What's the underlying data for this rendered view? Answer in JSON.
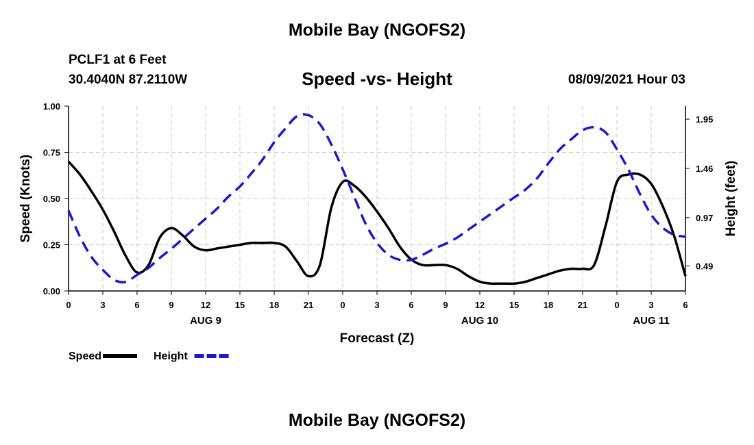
{
  "header": {
    "title": "Mobile Bay (NGOFS2)",
    "station": "PCLF1 at 6 Feet",
    "coords": "30.4040N  87.2110W",
    "subtitle": "Speed -vs- Height",
    "datetime": "08/09/2021 Hour 03"
  },
  "footer": {
    "title": "Mobile Bay (NGOFS2)"
  },
  "chart_data": {
    "type": "line",
    "title": "Speed -vs- Height",
    "xlabel": "Forecast (Z)",
    "ylabel": "Speed (Knots)",
    "y2label": "Height (feet)",
    "xlim": [
      0,
      54
    ],
    "ylim": [
      0,
      1.0
    ],
    "y2lim": [
      0.24,
      2.08
    ],
    "grid": true,
    "legend_position": "bottom-left",
    "x_ticks": [
      {
        "x": 0,
        "label": "0"
      },
      {
        "x": 3,
        "label": "3"
      },
      {
        "x": 6,
        "label": "6"
      },
      {
        "x": 9,
        "label": "9"
      },
      {
        "x": 12,
        "label": "12"
      },
      {
        "x": 15,
        "label": "15"
      },
      {
        "x": 18,
        "label": "18"
      },
      {
        "x": 21,
        "label": "21"
      },
      {
        "x": 24,
        "label": "0"
      },
      {
        "x": 27,
        "label": "3"
      },
      {
        "x": 30,
        "label": "6"
      },
      {
        "x": 33,
        "label": "9"
      },
      {
        "x": 36,
        "label": "12"
      },
      {
        "x": 39,
        "label": "15"
      },
      {
        "x": 42,
        "label": "18"
      },
      {
        "x": 45,
        "label": "21"
      },
      {
        "x": 48,
        "label": "0"
      },
      {
        "x": 51,
        "label": "3"
      },
      {
        "x": 54,
        "label": "6"
      }
    ],
    "day_labels": [
      {
        "x": 12,
        "label": "AUG 9"
      },
      {
        "x": 36,
        "label": "AUG 10"
      },
      {
        "x": 51,
        "label": "AUG 11"
      }
    ],
    "y_ticks": [
      {
        "value": 0,
        "label": "0.00"
      },
      {
        "value": 0.25,
        "label": "0.25"
      },
      {
        "value": 0.5,
        "label": "0.50"
      },
      {
        "value": 0.75,
        "label": "0.75"
      },
      {
        "value": 1.0,
        "label": "1.00"
      }
    ],
    "y2_ticks": [
      {
        "value": 0.49,
        "label": "0.49"
      },
      {
        "value": 0.97,
        "label": "0.97"
      },
      {
        "value": 1.46,
        "label": "1.46"
      },
      {
        "value": 1.95,
        "label": "1.95"
      }
    ],
    "series": [
      {
        "name": "Speed",
        "color": "#000000",
        "dash": "solid",
        "axis": "left",
        "x": [
          0,
          1,
          2,
          3,
          4,
          5,
          6,
          7,
          8,
          9,
          10,
          11,
          12,
          13,
          14,
          15,
          16,
          17,
          18,
          19,
          20,
          21,
          22,
          23,
          24,
          25,
          26,
          27,
          28,
          29,
          30,
          31,
          32,
          33,
          34,
          35,
          36,
          37,
          38,
          39,
          40,
          41,
          42,
          43,
          44,
          45,
          46,
          47,
          48,
          49,
          50,
          51,
          52,
          53,
          54
        ],
        "values": [
          0.7,
          0.63,
          0.54,
          0.44,
          0.32,
          0.19,
          0.1,
          0.14,
          0.29,
          0.34,
          0.3,
          0.24,
          0.22,
          0.23,
          0.24,
          0.25,
          0.26,
          0.26,
          0.26,
          0.24,
          0.16,
          0.08,
          0.14,
          0.45,
          0.59,
          0.57,
          0.51,
          0.43,
          0.34,
          0.24,
          0.17,
          0.14,
          0.14,
          0.14,
          0.12,
          0.08,
          0.05,
          0.04,
          0.04,
          0.04,
          0.05,
          0.07,
          0.09,
          0.11,
          0.12,
          0.12,
          0.14,
          0.35,
          0.59,
          0.63,
          0.63,
          0.58,
          0.46,
          0.3,
          0.08
        ]
      },
      {
        "name": "Height",
        "color": "#1a1acc",
        "dash": "dashed",
        "axis": "right",
        "x": [
          0,
          1,
          2,
          3,
          4,
          5,
          6,
          7,
          8,
          9,
          10,
          11,
          12,
          13,
          14,
          15,
          16,
          17,
          18,
          19,
          20,
          21,
          22,
          23,
          24,
          25,
          26,
          27,
          28,
          29,
          30,
          31,
          32,
          33,
          34,
          35,
          36,
          37,
          38,
          39,
          40,
          41,
          42,
          43,
          44,
          45,
          46,
          47,
          48,
          49,
          50,
          51,
          52,
          53,
          54
        ],
        "values": [
          1.04,
          0.78,
          0.58,
          0.45,
          0.35,
          0.33,
          0.4,
          0.47,
          0.57,
          0.66,
          0.76,
          0.86,
          0.96,
          1.06,
          1.18,
          1.28,
          1.41,
          1.55,
          1.72,
          1.86,
          1.98,
          1.99,
          1.9,
          1.7,
          1.45,
          1.18,
          0.91,
          0.72,
          0.6,
          0.55,
          0.55,
          0.6,
          0.66,
          0.71,
          0.77,
          0.85,
          0.93,
          1.01,
          1.09,
          1.17,
          1.25,
          1.36,
          1.51,
          1.65,
          1.75,
          1.84,
          1.87,
          1.82,
          1.65,
          1.45,
          1.21,
          1.0,
          0.87,
          0.8,
          0.78
        ]
      }
    ]
  }
}
